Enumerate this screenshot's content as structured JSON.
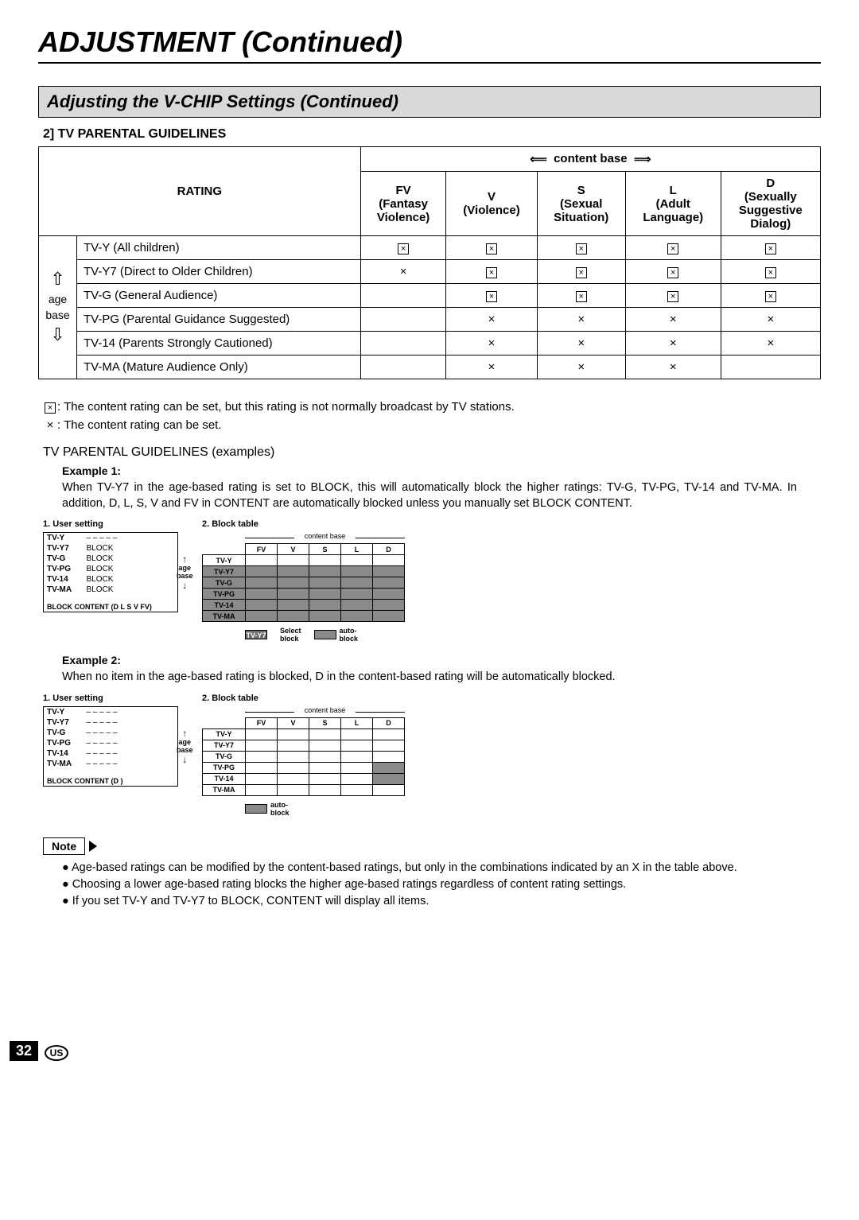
{
  "page": {
    "title": "ADJUSTMENT (Continued)",
    "section": "Adjusting the V-CHIP Settings (Continued)",
    "sub_number": "2] TV PARENTAL GUIDELINES",
    "number": "32",
    "region": "US"
  },
  "main_table": {
    "rating_header": "RATING",
    "content_base_label": "content base",
    "age_base_label": "age\nbase",
    "cols": [
      {
        "code": "FV",
        "desc": "(Fantasy\nViolence)"
      },
      {
        "code": "V",
        "desc": "(Violence)"
      },
      {
        "code": "S",
        "desc": "(Sexual\nSituation)"
      },
      {
        "code": "L",
        "desc": "(Adult\nLanguage)"
      },
      {
        "code": "D",
        "desc": "(Sexually\nSuggestive\nDialog)"
      }
    ],
    "rows": [
      {
        "label": "TV-Y (All children)",
        "cells": [
          "bx",
          "bx",
          "bx",
          "bx",
          "bx"
        ]
      },
      {
        "label": "TV-Y7 (Direct to Older Children)",
        "cells": [
          "x",
          "bx",
          "bx",
          "bx",
          "bx"
        ]
      },
      {
        "label": "TV-G (General Audience)",
        "cells": [
          "",
          "bx",
          "bx",
          "bx",
          "bx"
        ]
      },
      {
        "label": "TV-PG (Parental Guidance Suggested)",
        "cells": [
          "",
          "x",
          "x",
          "x",
          "x"
        ]
      },
      {
        "label": "TV-14 (Parents Strongly Cautioned)",
        "cells": [
          "",
          "x",
          "x",
          "x",
          "x"
        ]
      },
      {
        "label": "TV-MA (Mature Audience Only)",
        "cells": [
          "",
          "x",
          "x",
          "x",
          ""
        ]
      }
    ]
  },
  "legend": {
    "bx": ": The content rating can be set, but this rating is not normally broadcast by TV stations.",
    "x": ": The content rating can be set."
  },
  "examples_head": "TV PARENTAL GUIDELINES (examples)",
  "example1": {
    "title": "Example 1:",
    "body": "When TV-Y7 in the age-based rating is set to BLOCK, this will automatically block the higher ratings: TV-G, TV-PG, TV-14 and TV-MA. In addition, D, L, S, V and FV in CONTENT are automatically blocked unless you manually set BLOCK CONTENT.",
    "user_caption": "1. User setting",
    "block_caption": "2. Block table",
    "content_base": "content base",
    "age_base": "age\nbase",
    "user_rows": [
      [
        "TV-Y",
        "– – – – –"
      ],
      [
        "TV-Y7",
        "BLOCK"
      ],
      [
        "TV-G",
        "BLOCK"
      ],
      [
        "TV-PG",
        "BLOCK"
      ],
      [
        "TV-14",
        "BLOCK"
      ],
      [
        "TV-MA",
        "BLOCK"
      ]
    ],
    "user_footer": "BLOCK CONTENT (D L S V FV)",
    "block_cols": [
      "FV",
      "V",
      "S",
      "L",
      "D"
    ],
    "block_rows": [
      {
        "label": "TV-Y",
        "hl": false,
        "cells": [
          0,
          0,
          0,
          0,
          0
        ]
      },
      {
        "label": "TV-Y7",
        "hl": true,
        "cells": [
          1,
          1,
          1,
          1,
          1
        ]
      },
      {
        "label": "TV-G",
        "hl": true,
        "cells": [
          1,
          1,
          1,
          1,
          1
        ]
      },
      {
        "label": "TV-PG",
        "hl": true,
        "cells": [
          1,
          1,
          1,
          1,
          1
        ]
      },
      {
        "label": "TV-14",
        "hl": true,
        "cells": [
          1,
          1,
          1,
          1,
          1
        ]
      },
      {
        "label": "TV-MA",
        "hl": true,
        "cells": [
          1,
          1,
          1,
          1,
          1
        ]
      }
    ],
    "swatches": [
      {
        "label_line1": "TV-Y7",
        "label_line2": "",
        "dark": true
      },
      {
        "label_line1": "Select",
        "label_line2": "block",
        "dark": false,
        "text_only": true
      },
      {
        "label_line1": "auto-",
        "label_line2": "block",
        "mid": true
      }
    ]
  },
  "example2": {
    "title": "Example 2:",
    "body": "When no item in the age-based rating is blocked, D in the content-based rating will be automatically blocked.",
    "user_caption": "1. User setting",
    "block_caption": "2. Block table",
    "content_base": "content base",
    "age_base": "age\nbase",
    "user_rows": [
      [
        "TV-Y",
        "– – – – –"
      ],
      [
        "TV-Y7",
        "– – – – –"
      ],
      [
        "TV-G",
        "– – – – –"
      ],
      [
        "TV-PG",
        "– – – – –"
      ],
      [
        "TV-14",
        "– – – – –"
      ],
      [
        "TV-MA",
        "– – – – –"
      ]
    ],
    "user_footer": "BLOCK CONTENT (D             )",
    "block_cols": [
      "FV",
      "V",
      "S",
      "L",
      "D"
    ],
    "block_rows": [
      {
        "label": "TV-Y",
        "hl": false,
        "cells": [
          0,
          0,
          0,
          0,
          0
        ]
      },
      {
        "label": "TV-Y7",
        "hl": false,
        "cells": [
          0,
          0,
          0,
          0,
          0
        ]
      },
      {
        "label": "TV-G",
        "hl": false,
        "cells": [
          0,
          0,
          0,
          0,
          0
        ]
      },
      {
        "label": "TV-PG",
        "hl": false,
        "cells": [
          0,
          0,
          0,
          0,
          1
        ]
      },
      {
        "label": "TV-14",
        "hl": false,
        "cells": [
          0,
          0,
          0,
          0,
          1
        ]
      },
      {
        "label": "TV-MA",
        "hl": false,
        "cells": [
          0,
          0,
          0,
          0,
          0
        ]
      }
    ],
    "swatches": [
      {
        "label_line1": "auto-",
        "label_line2": "block",
        "mid": true
      }
    ]
  },
  "note": {
    "label": "Note",
    "items": [
      "Age-based ratings can be modified by the content-based ratings, but only in the combinations indicated by an X in the table above.",
      "Choosing a lower age-based rating blocks the higher age-based ratings regardless of content rating settings.",
      "If you set TV-Y and TV-Y7 to BLOCK, CONTENT will display all items."
    ]
  }
}
